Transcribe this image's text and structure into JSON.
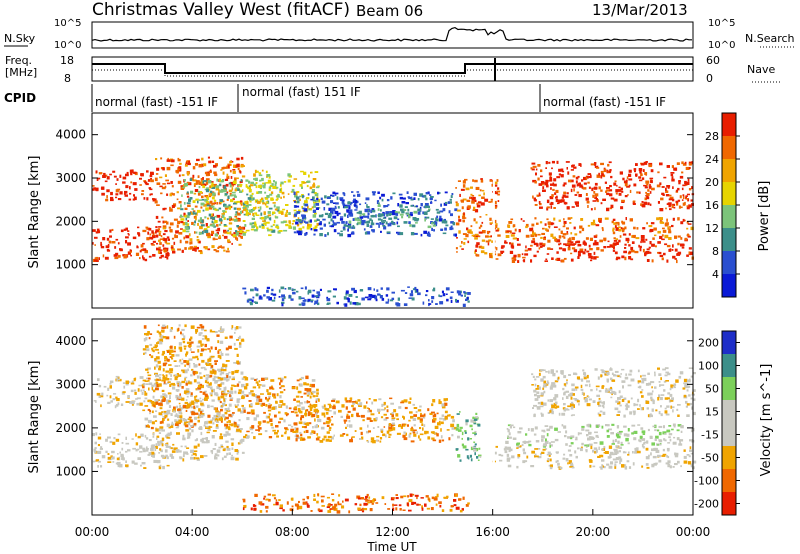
{
  "header": {
    "title": "Christmas Valley West (fitACF)",
    "beam": "Beam 06",
    "date": "13/Mar/2013"
  },
  "panels": {
    "noise": {
      "left_label": "N.Sky",
      "right_label": "N.Search",
      "left_ticks": [
        "10^5",
        "10^0"
      ],
      "right_ticks": [
        "10^5",
        "10^0"
      ]
    },
    "freq": {
      "left_label_1": "Freq.",
      "left_label_2": "[MHz]",
      "right_label": "Nave",
      "left_ticks": [
        "18",
        "8"
      ],
      "right_ticks": [
        "60",
        "0"
      ]
    },
    "cpid": {
      "label": "CPID",
      "segments": [
        {
          "text": "normal (fast) -151 IF"
        },
        {
          "text": "normal (fast) 151 IF"
        },
        {
          "text": "normal (fast) -151 IF"
        }
      ]
    }
  },
  "colors": {
    "power": [
      "#0a1ad6",
      "#2a4fd0",
      "#3c8f8a",
      "#7cc47a",
      "#e6d400",
      "#f0a400",
      "#f06800",
      "#e81e00"
    ],
    "velocity": [
      "#e81e00",
      "#f06800",
      "#f0a400",
      "#c8c8c0",
      "#c8c8c0",
      "#7cd05a",
      "#3c8f8a",
      "#1e2ec8"
    ]
  },
  "chart_data": [
    {
      "type": "heatmap",
      "name": "power",
      "ylabel": "Slant Range [km]",
      "xlabel": "",
      "ylim": [
        0,
        4500
      ],
      "yticks": [
        "1000",
        "2000",
        "3000",
        "4000"
      ],
      "colorbar_label": "Power [dB]",
      "colorbar_ticks": [
        "4",
        "8",
        "12",
        "16",
        "20",
        "24",
        "28"
      ],
      "bands": [
        {
          "t0": 0.0,
          "t1": 3.0,
          "r0": 1100,
          "r1": 1900,
          "level": 7
        },
        {
          "t0": 0.0,
          "t1": 2.5,
          "r0": 2500,
          "r1": 3200,
          "level": 7
        },
        {
          "t0": 2.5,
          "t1": 6.0,
          "r0": 1300,
          "r1": 3500,
          "level": 6
        },
        {
          "t0": 3.5,
          "t1": 7.5,
          "r0": 1700,
          "r1": 3000,
          "level": 3
        },
        {
          "t0": 6.0,
          "t1": 9.0,
          "r0": 1800,
          "r1": 3200,
          "level": 4
        },
        {
          "t0": 8.0,
          "t1": 14.5,
          "r0": 1700,
          "r1": 2700,
          "level": 1
        },
        {
          "t0": 10.0,
          "t1": 14.0,
          "r0": 1900,
          "r1": 2400,
          "level": 2
        },
        {
          "t0": 6.0,
          "t1": 15.0,
          "r0": 100,
          "r1": 500,
          "level": 1
        },
        {
          "t0": 14.5,
          "t1": 16.2,
          "r0": 1200,
          "r1": 3000,
          "level": 6
        },
        {
          "t0": 16.0,
          "t1": 24.0,
          "r0": 1100,
          "r1": 1600,
          "level": 7
        },
        {
          "t0": 16.5,
          "t1": 24.0,
          "r0": 1600,
          "r1": 2100,
          "level": 6
        },
        {
          "t0": 17.5,
          "t1": 24.0,
          "r0": 2300,
          "r1": 3400,
          "level": 7
        }
      ]
    },
    {
      "type": "heatmap",
      "name": "velocity",
      "ylabel": "Slant Range [km]",
      "xlabel": "Time UT",
      "ylim": [
        0,
        4500
      ],
      "yticks": [
        "1000",
        "2000",
        "3000",
        "4000"
      ],
      "xticks": [
        "00:00",
        "04:00",
        "08:00",
        "12:00",
        "16:00",
        "20:00",
        "00:00"
      ],
      "colorbar_label": "Velocity [m s^-1]",
      "colorbar_ticks": [
        "-200",
        "-100",
        "-50",
        "-15",
        "15",
        "50",
        "100",
        "200"
      ],
      "bands": [
        {
          "t0": 0.0,
          "t1": 3.0,
          "r0": 1100,
          "r1": 1900,
          "level": 3
        },
        {
          "t0": 0.0,
          "t1": 2.5,
          "r0": 2500,
          "r1": 3200,
          "level": 3
        },
        {
          "t0": 2.5,
          "t1": 6.0,
          "r0": 1300,
          "r1": 3500,
          "level": 3
        },
        {
          "t0": 2.0,
          "t1": 6.0,
          "r0": 2000,
          "r1": 4400,
          "level": 2
        },
        {
          "t0": 6.0,
          "t1": 9.0,
          "r0": 1800,
          "r1": 3200,
          "level": 2
        },
        {
          "t0": 8.0,
          "t1": 14.5,
          "r0": 1700,
          "r1": 2700,
          "level": 2
        },
        {
          "t0": 6.0,
          "t1": 15.0,
          "r0": 100,
          "r1": 500,
          "level": 1
        },
        {
          "t0": 14.5,
          "t1": 15.5,
          "r0": 1200,
          "r1": 2400,
          "level": 5
        },
        {
          "t0": 16.0,
          "t1": 24.0,
          "r0": 1100,
          "r1": 1600,
          "level": 3
        },
        {
          "t0": 16.5,
          "t1": 24.0,
          "r0": 1600,
          "r1": 2100,
          "level": 4
        },
        {
          "t0": 17.5,
          "t1": 24.0,
          "r0": 2300,
          "r1": 3400,
          "level": 3
        }
      ]
    }
  ]
}
